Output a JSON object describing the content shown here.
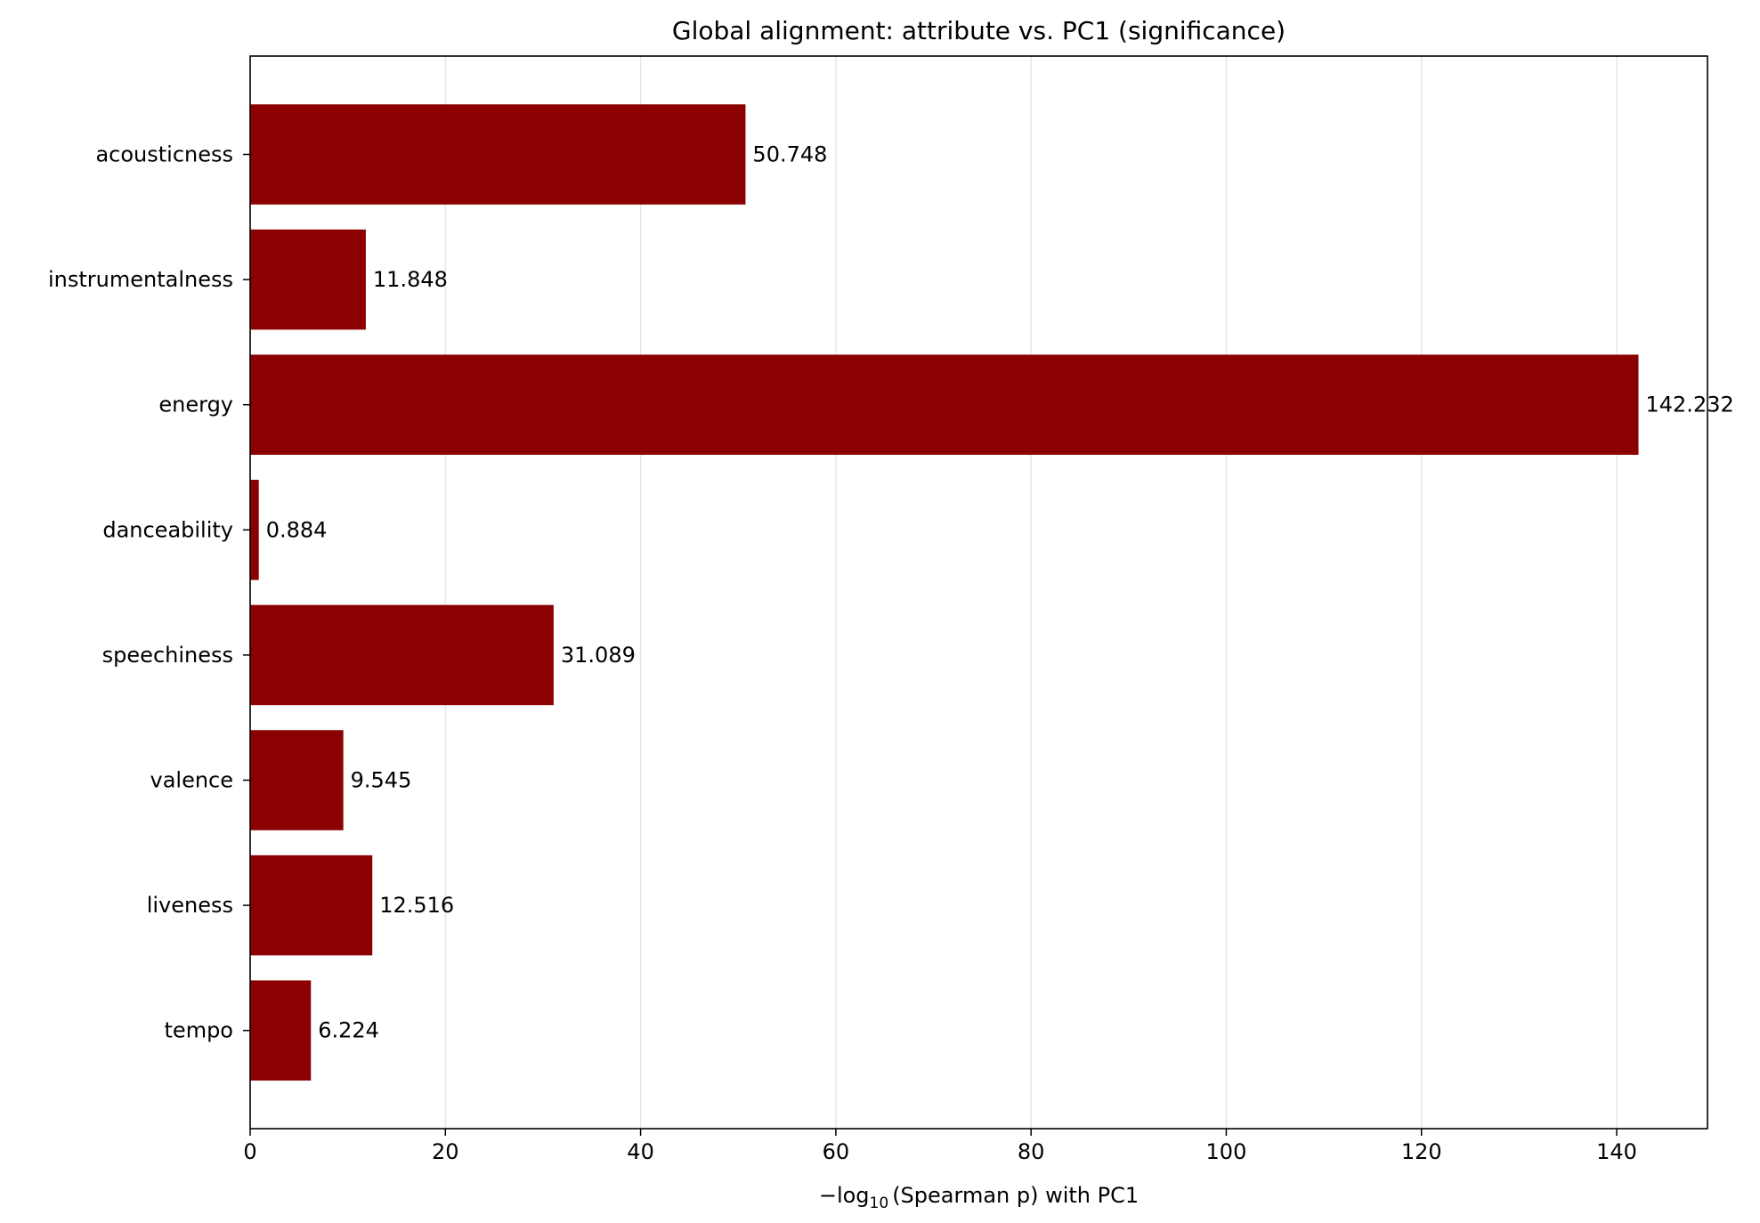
{
  "chart_data": {
    "type": "bar",
    "orientation": "horizontal",
    "title": "Global alignment: attribute vs. PC1 (significance)",
    "xlabel": {
      "prefix": "−log",
      "subscript": "10",
      "suffix": "(Spearman p) with PC1"
    },
    "ylabel": "",
    "categories": [
      "acousticness",
      "instrumentalness",
      "energy",
      "danceability",
      "speechiness",
      "valence",
      "liveness",
      "tempo"
    ],
    "values": [
      50.748,
      11.848,
      142.232,
      0.884,
      31.089,
      9.545,
      12.516,
      6.224
    ],
    "value_labels": [
      "50.748",
      "11.848",
      "142.232",
      "0.884",
      "31.089",
      "9.545",
      "12.516",
      "6.224"
    ],
    "xlim": [
      0,
      149.3
    ],
    "xticks": [
      0,
      20,
      40,
      60,
      80,
      100,
      120,
      140
    ],
    "xtick_labels": [
      "0",
      "20",
      "40",
      "60",
      "80",
      "100",
      "120",
      "140"
    ],
    "grid": {
      "x": true,
      "y": false
    },
    "bar_color": "#8b0000",
    "grid_color": "#e6e6e6"
  }
}
